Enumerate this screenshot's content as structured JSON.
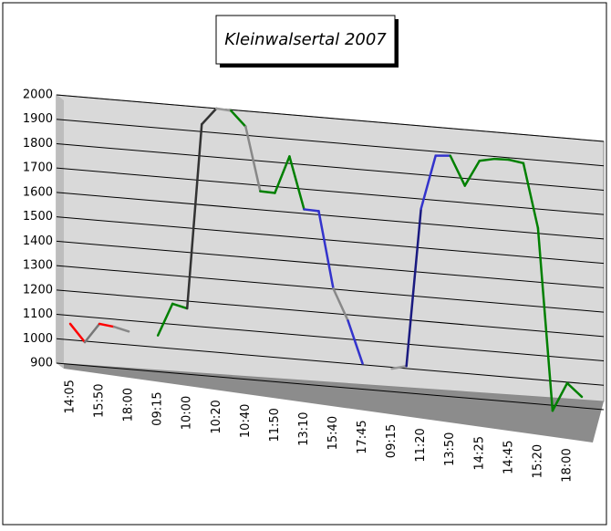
{
  "chart_data": {
    "type": "line",
    "title": "Kleinwalsertal 2007",
    "categories": [
      "14:05",
      null,
      "15:50",
      null,
      "18:00",
      null,
      "09:15",
      null,
      "10:00",
      null,
      "10:20",
      null,
      "10:40",
      null,
      "11:50",
      null,
      "13:10",
      null,
      "15:40",
      null,
      "17:45",
      null,
      "09:15",
      null,
      "11:20",
      null,
      "13:50",
      null,
      "14:25",
      null,
      "14:45",
      null,
      "15:20",
      null,
      "18:00",
      null
    ],
    "values": [
      1066,
      996,
      1076,
      1069,
      1055,
      null,
      1049,
      1184,
      1170,
      1930,
      2000,
      1996,
      1936,
      1676,
      1674,
      1829,
      1617,
      1615,
      1302,
      1176,
      1005,
      null,
      994,
      1010,
      1660,
      1883,
      1888,
      1770,
      1877,
      1890,
      1892,
      1883,
      1622,
      878,
      996,
      945
    ],
    "segment_colors": [
      "#ff0000",
      "#777777",
      "#ff0000",
      "#888888",
      null,
      null,
      "#008000",
      "#008000",
      "#333333",
      "#333333",
      "#999999",
      "#008000",
      "#888888",
      "#008000",
      "#008000",
      "#008000",
      "#3333cc",
      "#3333cc",
      "#888888",
      "#3333cc",
      null,
      null,
      "#999999",
      "#1a1a80",
      "#3333cc",
      "#3333cc",
      "#008000",
      "#008000",
      "#008000",
      "#008000",
      "#008000",
      "#008000",
      "#008000",
      "#008000",
      "#008000"
    ],
    "ylim": [
      900,
      2000
    ],
    "yticks": [
      900,
      1000,
      1100,
      1200,
      1300,
      1400,
      1500,
      1600,
      1700,
      1800,
      1900,
      2000
    ],
    "grid": true
  }
}
